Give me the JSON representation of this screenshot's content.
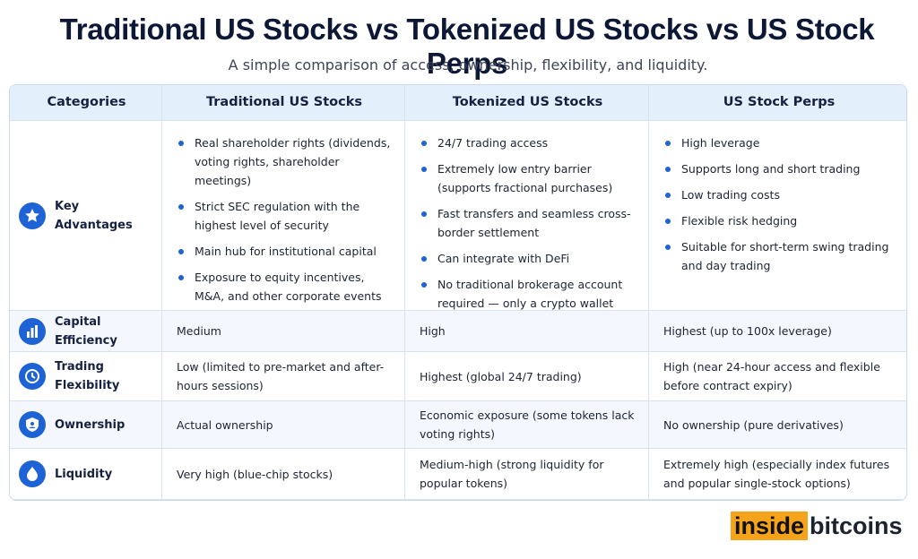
{
  "header": {
    "title": "Traditional US Stocks vs Tokenized US Stocks vs US Stock Perps",
    "subtitle": "A simple comparison of access, ownership, flexibility, and liquidity."
  },
  "table": {
    "headers": [
      "Categories",
      "Traditional US Stocks",
      "Tokenized US Stocks",
      "US Stock Perps"
    ],
    "rows": [
      {
        "category": "Key Advantages",
        "cells": [
          [
            "Real shareholder rights (dividends, voting rights, shareholder meetings)",
            "Strict SEC regulation with the highest level of security",
            "Main hub for institutional capital",
            "Exposure to equity incentives, M&A, and other corporate events"
          ],
          [
            "24/7 trading access",
            "Extremely low entry barrier (supports fractional purchases)",
            "Fast transfers and seamless cross-border settlement",
            "Can integrate with DeFi",
            "No traditional brokerage account required — only a crypto wallet"
          ],
          [
            "High leverage",
            "Supports long and short trading",
            "Low trading costs",
            "Flexible risk hedging",
            "Suitable for short-term swing trading and day trading"
          ]
        ]
      },
      {
        "category": "Capital Efficiency",
        "cells": [
          "Medium",
          "High",
          "Highest (up to 100x leverage)"
        ]
      },
      {
        "category": "Trading Flexibility",
        "cells": [
          "Low (limited to pre-market and after-hours sessions)",
          "Highest (global 24/7 trading)",
          "High (near 24-hour access and flexible before contract expiry)"
        ]
      },
      {
        "category": "Ownership",
        "cells": [
          "Actual ownership",
          "Economic exposure (some tokens lack voting rights)",
          "No ownership (pure derivatives)"
        ]
      },
      {
        "category": "Liquidity",
        "cells": [
          "Very high (blue-chip stocks)",
          "Medium-high (strong liquidity for popular tokens)",
          "Extremely high (especially index futures and popular single-stock options)"
        ]
      }
    ]
  },
  "brand": {
    "part1": "inside",
    "part2": "bitcoins"
  }
}
